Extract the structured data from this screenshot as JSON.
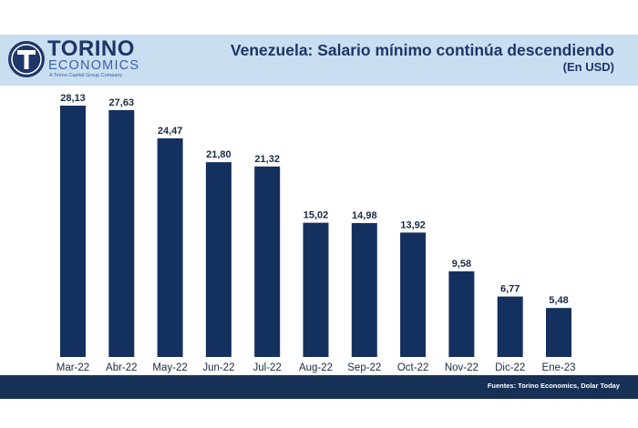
{
  "logo": {
    "word": "TORINO",
    "sub": "ECONOMICS",
    "tagline": "A Torino Capital Group Company"
  },
  "colors": {
    "bar": "#14305e",
    "header_band": "#c9def0",
    "footer_band": "#173056",
    "title_text": "#1e3668"
  },
  "footer": {
    "source": "Fuentes: Torino Economics, Dolar Today"
  },
  "chart_data": {
    "type": "bar",
    "title": "Venezuela: Salario mínimo continúa descendiendo",
    "subtitle": "(En USD)",
    "xlabel": "",
    "ylabel": "",
    "categories": [
      "Mar-22",
      "Abr-22",
      "May-22",
      "Jun-22",
      "Jul-22",
      "Aug-22",
      "Sep-22",
      "Oct-22",
      "Nov-22",
      "Dic-22",
      "Ene-23"
    ],
    "values": [
      28.13,
      27.63,
      24.47,
      21.8,
      21.32,
      15.02,
      14.98,
      13.92,
      9.58,
      6.77,
      5.48
    ],
    "value_labels": [
      "28,13",
      "27,63",
      "24,47",
      "21,80",
      "21,32",
      "15,02",
      "14,98",
      "13,92",
      "9,58",
      "6,77",
      "5,48"
    ],
    "ylim": [
      0,
      28.13
    ],
    "grid": false,
    "legend": "none"
  }
}
